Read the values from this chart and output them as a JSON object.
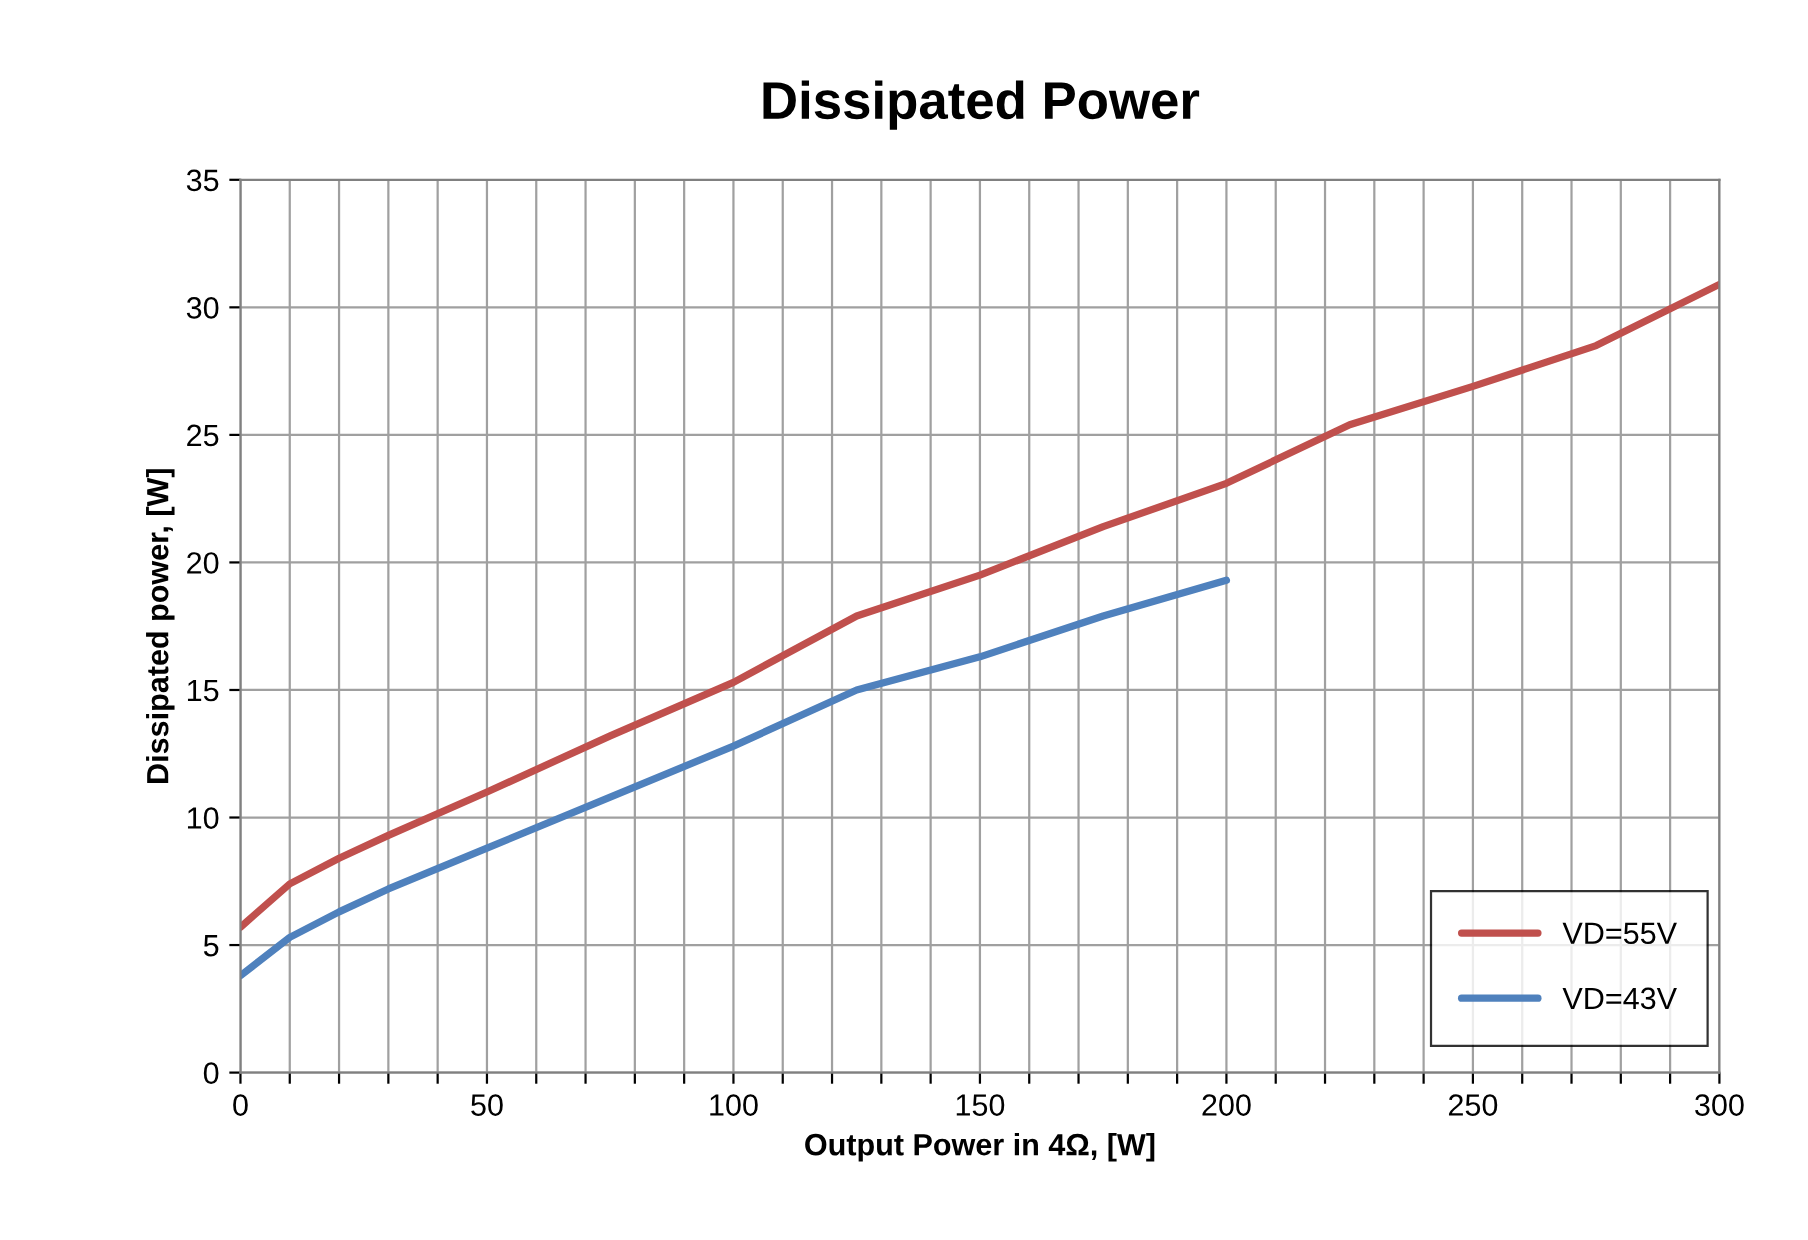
{
  "chart_data": {
    "type": "line",
    "title": "Dissipated Power",
    "xlabel": "Output Power in 4Ω, [W]",
    "ylabel": "Dissipated power, [W]",
    "series": [
      {
        "name": "VD=55V",
        "color": "#c0504d",
        "x": [
          0,
          10,
          20,
          30,
          50,
          75,
          100,
          125,
          150,
          175,
          200,
          225,
          250,
          275,
          300
        ],
        "values": [
          5.7,
          7.4,
          8.4,
          9.3,
          11.0,
          13.2,
          15.3,
          17.9,
          19.5,
          21.4,
          23.1,
          25.4,
          26.9,
          28.5,
          30.9
        ]
      },
      {
        "name": "VD=43V",
        "color": "#4f81bd",
        "x": [
          0,
          10,
          20,
          30,
          50,
          75,
          100,
          125,
          150,
          175,
          200
        ],
        "values": [
          3.8,
          5.3,
          6.3,
          7.2,
          8.8,
          10.8,
          12.8,
          15.0,
          16.3,
          17.9,
          19.3
        ]
      }
    ],
    "xlim": [
      0,
      300
    ],
    "xticks": [
      0,
      {
        "value": 10,
        "label": null
      },
      {
        "value": 20,
        "label": null
      },
      {
        "value": 30,
        "label": null
      },
      {
        "value": 40,
        "label": null
      },
      50,
      {
        "value": 60,
        "label": null
      },
      {
        "value": 70,
        "label": null
      },
      {
        "value": 80,
        "label": null
      },
      {
        "value": 90,
        "label": null
      },
      100,
      {
        "value": 110,
        "label": null
      },
      {
        "value": 120,
        "label": null
      },
      {
        "value": 130,
        "label": null
      },
      {
        "value": 140,
        "label": null
      },
      150,
      {
        "value": 160,
        "label": null
      },
      {
        "value": 170,
        "label": null
      },
      {
        "value": 180,
        "label": null
      },
      {
        "value": 190,
        "label": null
      },
      200,
      {
        "value": 210,
        "label": null
      },
      {
        "value": 220,
        "label": null
      },
      {
        "value": 230,
        "label": null
      },
      {
        "value": 240,
        "label": null
      },
      250,
      {
        "value": 260,
        "label": null
      },
      {
        "value": 270,
        "label": null
      },
      {
        "value": 280,
        "label": null
      },
      {
        "value": 290,
        "label": null
      },
      300
    ],
    "ylim": [
      0,
      35
    ],
    "yticks": [
      0,
      5,
      10,
      15,
      20,
      25,
      30,
      35
    ],
    "grid": true,
    "legend": "bottom right",
    "marker": "none",
    "line_style": "solid"
  }
}
